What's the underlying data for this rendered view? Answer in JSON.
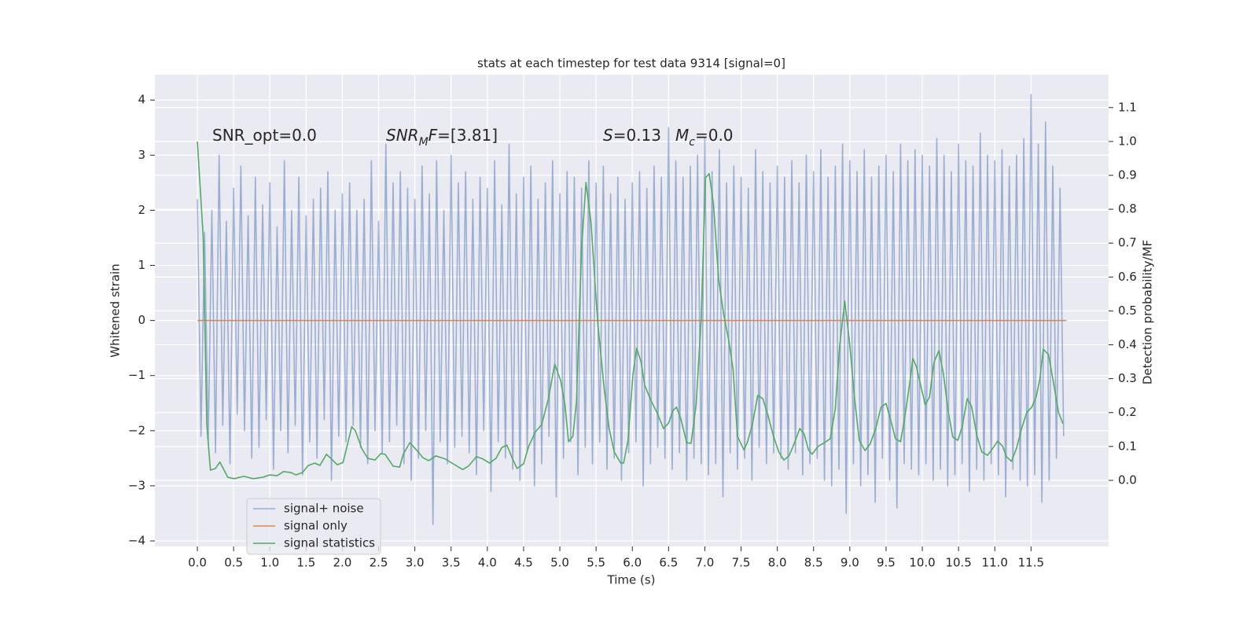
{
  "chart_data": {
    "type": "line",
    "title": "stats at each timestep for test data 9314 [signal=0]",
    "xlabel": "Time (s)",
    "ylabel": "Whitened strain",
    "y2label": "Detection probability/MF",
    "background": "#eaeaf2",
    "grid": true,
    "legend": "lower left",
    "xlim": [
      -0.586,
      12.57
    ],
    "ylim": [
      -4.1,
      4.46
    ],
    "y2lim": [
      -0.195,
      1.197
    ],
    "xticks": [
      {
        "value": 0,
        "label": "0.0"
      },
      0.5,
      {
        "value": 1,
        "label": "1.0"
      },
      1.5,
      {
        "value": 2,
        "label": "2.0"
      },
      2.5,
      {
        "value": 3,
        "label": "3.0"
      },
      3.5,
      {
        "value": 4,
        "label": "4.0"
      },
      4.5,
      {
        "value": 5,
        "label": "5.0"
      },
      5.5,
      {
        "value": 6,
        "label": "6.0"
      },
      6.5,
      {
        "value": 7,
        "label": "7.0"
      },
      7.5,
      {
        "value": 8,
        "label": "8.0"
      },
      8.5,
      {
        "value": 9,
        "label": "9.0"
      },
      9.5,
      {
        "value": 10,
        "label": "10.0"
      },
      10.5,
      {
        "value": 11,
        "label": "11.0"
      },
      11.5
    ],
    "yticks": [
      {
        "value": -4,
        "label": "−4"
      },
      {
        "value": -3,
        "label": "−3"
      },
      {
        "value": -2,
        "label": "−2"
      },
      {
        "value": -1,
        "label": "−1"
      },
      0,
      1,
      2,
      3,
      4
    ],
    "y2ticks": [
      {
        "value": 0,
        "label": "0.0"
      },
      0.1,
      0.2,
      0.3,
      0.4,
      0.5,
      0.6,
      0.7,
      0.8,
      0.9,
      {
        "value": 1,
        "label": "1.0"
      },
      1.1
    ],
    "annotations": [
      [
        {
          "text": "SNR_opt=0.0",
          "italic": false,
          "sub": false
        }
      ],
      [
        {
          "text": "SNR",
          "italic": true,
          "sub": false
        },
        {
          "text": "M",
          "italic": true,
          "sub": true
        },
        {
          "text": "F",
          "italic": true,
          "sub": false
        },
        {
          "text": "=[3.81]",
          "italic": false,
          "sub": false
        }
      ],
      [
        {
          "text": "S",
          "italic": true,
          "sub": false
        },
        {
          "text": "=0.13",
          "italic": false,
          "sub": false
        }
      ],
      [
        {
          "text": "M",
          "italic": true,
          "sub": false
        },
        {
          "text": "c",
          "italic": true,
          "sub": true
        },
        {
          "text": "=0.0",
          "italic": false,
          "sub": false
        }
      ]
    ],
    "series": [
      {
        "name": "signal+ noise",
        "color": "#4c72b0",
        "opacity": 0.5,
        "axis": "y",
        "x": [
          0,
          0.05,
          0.1,
          0.15,
          0.2,
          0.25,
          0.3,
          0.35,
          0.4,
          0.45,
          0.5,
          0.55,
          0.6,
          0.65,
          0.7,
          0.75,
          0.8,
          0.85,
          0.9,
          0.95,
          1,
          1.05,
          1.1,
          1.15,
          1.2,
          1.25,
          1.3,
          1.35,
          1.4,
          1.45,
          1.5,
          1.55,
          1.6,
          1.65,
          1.7,
          1.75,
          1.8,
          1.85,
          1.9,
          1.95,
          2,
          2.05,
          2.1,
          2.15,
          2.2,
          2.25,
          2.3,
          2.35,
          2.4,
          2.45,
          2.5,
          2.55,
          2.6,
          2.65,
          2.7,
          2.75,
          2.8,
          2.85,
          2.9,
          2.95,
          3,
          3.05,
          3.1,
          3.15,
          3.2,
          3.25,
          3.3,
          3.35,
          3.4,
          3.45,
          3.5,
          3.55,
          3.6,
          3.65,
          3.7,
          3.75,
          3.8,
          3.85,
          3.9,
          3.95,
          4,
          4.05,
          4.1,
          4.15,
          4.2,
          4.25,
          4.3,
          4.35,
          4.4,
          4.45,
          4.5,
          4.55,
          4.6,
          4.65,
          4.7,
          4.75,
          4.8,
          4.85,
          4.9,
          4.95,
          5,
          5.05,
          5.1,
          5.15,
          5.2,
          5.25,
          5.3,
          5.35,
          5.4,
          5.45,
          5.5,
          5.55,
          5.6,
          5.65,
          5.7,
          5.75,
          5.8,
          5.85,
          5.9,
          5.95,
          6,
          6.05,
          6.1,
          6.15,
          6.2,
          6.25,
          6.3,
          6.35,
          6.4,
          6.45,
          6.5,
          6.55,
          6.6,
          6.65,
          6.7,
          6.75,
          6.8,
          6.85,
          6.9,
          6.95,
          7,
          7.05,
          7.1,
          7.15,
          7.2,
          7.25,
          7.3,
          7.35,
          7.4,
          7.45,
          7.5,
          7.55,
          7.6,
          7.65,
          7.7,
          7.75,
          7.8,
          7.85,
          7.9,
          7.95,
          8,
          8.05,
          8.1,
          8.15,
          8.2,
          8.25,
          8.3,
          8.35,
          8.4,
          8.45,
          8.5,
          8.55,
          8.6,
          8.65,
          8.7,
          8.75,
          8.8,
          8.85,
          8.9,
          8.95,
          9,
          9.05,
          9.1,
          9.15,
          9.2,
          9.25,
          9.3,
          9.35,
          9.4,
          9.45,
          9.5,
          9.55,
          9.6,
          9.65,
          9.7,
          9.75,
          9.8,
          9.85,
          9.9,
          9.95,
          10,
          10.05,
          10.1,
          10.15,
          10.2,
          10.25,
          10.3,
          10.35,
          10.4,
          10.45,
          10.5,
          10.55,
          10.6,
          10.65,
          10.7,
          10.75,
          10.8,
          10.85,
          10.9,
          10.95,
          11,
          11.05,
          11.1,
          11.15,
          11.2,
          11.25,
          11.3,
          11.35,
          11.4,
          11.45,
          11.5,
          11.55,
          11.6,
          11.65,
          11.7,
          11.75,
          11.8,
          11.85,
          11.9,
          11.95
        ],
        "values": [
          2.2,
          -2.1,
          1.6,
          -2.2,
          2.0,
          -2.4,
          3.0,
          -1.9,
          1.8,
          -2.6,
          2.4,
          -1.7,
          2.8,
          -2.0,
          1.9,
          -2.5,
          2.6,
          -2.3,
          2.1,
          -1.8,
          2.5,
          -2.7,
          1.7,
          -2.0,
          2.9,
          -2.4,
          2.0,
          -1.9,
          2.6,
          -2.8,
          1.9,
          -2.2,
          2.2,
          -2.5,
          2.4,
          -1.8,
          2.7,
          -2.9,
          2.0,
          -2.1,
          2.3,
          -2.2,
          2.5,
          -1.9,
          2.0,
          -2.3,
          2.2,
          -2.6,
          2.9,
          -2.0,
          1.8,
          -2.4,
          3.2,
          -2.2,
          2.5,
          -1.9,
          2.7,
          -2.6,
          2.4,
          -2.9,
          2.2,
          -2.5,
          2.8,
          -2.0,
          2.3,
          -3.7,
          2.9,
          -2.2,
          2.0,
          -2.6,
          3.0,
          -2.3,
          2.5,
          -2.1,
          2.7,
          -2.4,
          2.2,
          -2.8,
          2.6,
          -2.0,
          2.4,
          -3.1,
          2.9,
          -2.2,
          2.1,
          -2.5,
          3.2,
          -2.7,
          2.3,
          -2.9,
          2.6,
          -2.4,
          2.8,
          -3.0,
          2.2,
          -2.6,
          2.5,
          -2.1,
          2.9,
          -3.2,
          2.3,
          -2.5,
          2.7,
          -2.2,
          2.6,
          -2.8,
          2.4,
          -2.3,
          2.9,
          -2.6,
          2.5,
          -2.2,
          2.8,
          -2.7,
          2.3,
          -2.5,
          2.6,
          -2.9,
          2.2,
          -2.4,
          2.5,
          -2.2,
          2.7,
          -3.0,
          2.4,
          -2.6,
          2.8,
          -2.3,
          2.6,
          -2.5,
          3.5,
          -2.7,
          2.9,
          -2.4,
          2.6,
          -2.9,
          2.8,
          -2.5,
          3.0,
          -2.6,
          3.3,
          -2.8,
          2.7,
          -2.6,
          3.1,
          -3.2,
          2.5,
          -2.4,
          2.8,
          -2.7,
          2.6,
          -2.5,
          2.4,
          -2.9,
          3.1,
          -2.3,
          2.7,
          -2.6,
          2.5,
          -2.4,
          2.8,
          -2.5,
          2.6,
          -2.7,
          2.9,
          -2.4,
          2.5,
          -2.8,
          3.0,
          -2.6,
          2.7,
          -2.5,
          3.1,
          -2.9,
          2.6,
          -3.0,
          2.8,
          -2.7,
          3.2,
          -3.5,
          2.9,
          -2.6,
          2.7,
          -3.0,
          3.1,
          -2.8,
          2.6,
          -3.3,
          2.8,
          -2.5,
          3.0,
          -2.9,
          2.7,
          -3.4,
          3.2,
          -2.6,
          2.9,
          -2.7,
          3.1,
          -2.8,
          3.0,
          -2.6,
          2.8,
          -2.9,
          3.3,
          -2.7,
          3.0,
          -3.0,
          2.7,
          -2.8,
          3.2,
          -2.6,
          2.9,
          -3.1,
          2.8,
          -2.7,
          3.4,
          -2.9,
          3.0,
          -2.6,
          2.9,
          -2.8,
          3.1,
          -3.2,
          2.8,
          -2.7,
          3.0,
          -2.9,
          3.3,
          -3.0,
          4.1,
          -2.8,
          3.2,
          -3.3,
          3.6,
          -2.9,
          2.8,
          -2.5,
          2.4,
          -2.1
        ]
      },
      {
        "name": "signal only",
        "color": "#dd8452",
        "opacity": 1,
        "axis": "y",
        "x": [
          0,
          11.99
        ],
        "values": [
          0,
          0
        ]
      },
      {
        "name": "signal statistics",
        "color": "#55a868",
        "opacity": 1,
        "axis": "y2",
        "x": [
          0,
          0.08,
          0.13,
          0.18,
          0.25,
          0.31,
          0.42,
          0.51,
          0.64,
          0.77,
          0.9,
          1.0,
          1.1,
          1.19,
          1.29,
          1.36,
          1.45,
          1.53,
          1.62,
          1.69,
          1.78,
          1.85,
          1.93,
          2.01,
          2.13,
          2.18,
          2.27,
          2.35,
          2.45,
          2.53,
          2.59,
          2.7,
          2.79,
          2.84,
          2.93,
          3.03,
          3.11,
          3.19,
          3.29,
          3.42,
          3.55,
          3.66,
          3.74,
          3.85,
          3.94,
          4.03,
          4.12,
          4.2,
          4.27,
          4.34,
          4.41,
          4.5,
          4.57,
          4.66,
          4.75,
          4.84,
          4.93,
          5.01,
          5.07,
          5.12,
          5.18,
          5.23,
          5.3,
          5.36,
          5.43,
          5.52,
          5.61,
          5.68,
          5.75,
          5.84,
          5.88,
          5.94,
          6.01,
          6.06,
          6.12,
          6.17,
          6.26,
          6.34,
          6.43,
          6.5,
          6.56,
          6.61,
          6.67,
          6.75,
          6.81,
          6.88,
          6.95,
          7.01,
          7.06,
          7.12,
          7.19,
          7.26,
          7.33,
          7.39,
          7.45,
          7.54,
          7.59,
          7.66,
          7.73,
          7.8,
          7.87,
          7.94,
          8.02,
          8.09,
          8.16,
          8.23,
          8.31,
          8.37,
          8.43,
          8.48,
          8.56,
          8.65,
          8.73,
          8.8,
          8.86,
          8.93,
          8.99,
          9.07,
          9.13,
          9.21,
          9.28,
          9.36,
          9.43,
          9.5,
          9.56,
          9.63,
          9.7,
          9.76,
          9.83,
          9.87,
          9.92,
          9.99,
          10.04,
          10.1,
          10.16,
          10.23,
          10.29,
          10.36,
          10.42,
          10.49,
          10.55,
          10.62,
          10.68,
          10.75,
          10.82,
          10.9,
          10.98,
          11.04,
          11.11,
          11.16,
          11.23,
          11.3,
          11.37,
          11.44,
          11.51,
          11.57,
          11.62,
          11.67,
          11.74,
          11.81,
          11.88,
          11.94
        ],
        "values": [
          1.0,
          0.72,
          0.165,
          0.03,
          0.035,
          0.054,
          0.009,
          0.005,
          0.012,
          0.005,
          0.009,
          0.016,
          0.014,
          0.026,
          0.023,
          0.016,
          0.023,
          0.044,
          0.051,
          0.044,
          0.077,
          0.063,
          0.046,
          0.053,
          0.158,
          0.146,
          0.093,
          0.065,
          0.06,
          0.079,
          0.077,
          0.042,
          0.039,
          0.077,
          0.111,
          0.088,
          0.067,
          0.058,
          0.072,
          0.063,
          0.046,
          0.032,
          0.042,
          0.07,
          0.063,
          0.051,
          0.065,
          0.097,
          0.104,
          0.067,
          0.035,
          0.049,
          0.1,
          0.142,
          0.165,
          0.239,
          0.343,
          0.295,
          0.225,
          0.114,
          0.13,
          0.234,
          0.684,
          0.879,
          0.761,
          0.471,
          0.274,
          0.153,
          0.084,
          0.051,
          0.051,
          0.118,
          0.316,
          0.39,
          0.35,
          0.281,
          0.234,
          0.2,
          0.153,
          0.169,
          0.206,
          0.216,
          0.181,
          0.111,
          0.109,
          0.223,
          0.476,
          0.893,
          0.905,
          0.814,
          0.594,
          0.49,
          0.413,
          0.327,
          0.13,
          0.09,
          0.114,
          0.169,
          0.251,
          0.241,
          0.193,
          0.135,
          0.084,
          0.06,
          0.072,
          0.107,
          0.153,
          0.137,
          0.09,
          0.077,
          0.1,
          0.111,
          0.123,
          0.211,
          0.397,
          0.529,
          0.42,
          0.234,
          0.118,
          0.088,
          0.107,
          0.155,
          0.216,
          0.227,
          0.181,
          0.123,
          0.114,
          0.188,
          0.292,
          0.36,
          0.334,
          0.269,
          0.223,
          0.246,
          0.348,
          0.383,
          0.316,
          0.2,
          0.128,
          0.118,
          0.158,
          0.241,
          0.218,
          0.135,
          0.084,
          0.074,
          0.097,
          0.116,
          0.1,
          0.07,
          0.056,
          0.095,
          0.153,
          0.2,
          0.216,
          0.246,
          0.297,
          0.387,
          0.371,
          0.288,
          0.2,
          0.167
        ]
      }
    ]
  }
}
